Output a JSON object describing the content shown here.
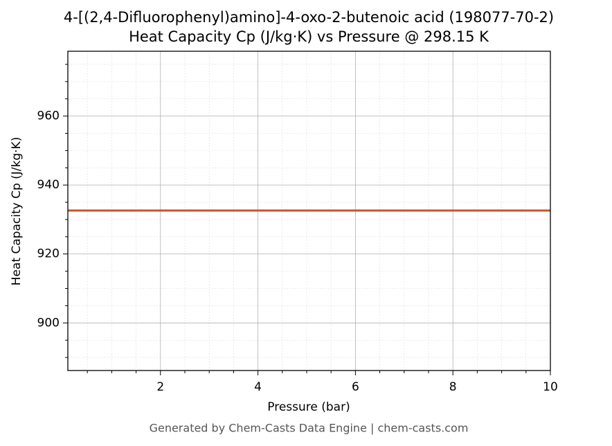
{
  "chart_data": {
    "type": "line",
    "title": "4-[(2,4-Difluorophenyl)amino]-4-oxo-2-butenoic acid (198077-70-2)",
    "subtitle": "Heat Capacity Cp (J/kg·K) vs Pressure @ 298.15 K",
    "x_label": "Pressure (bar)",
    "y_label": "Heat Capacity Cp (J/kg·K)",
    "footer": "Generated by Chem-Casts Data Engine | chem-casts.com",
    "x": [
      0.1,
      10
    ],
    "series": [
      {
        "name": "Cp",
        "color": "#c8522a",
        "values": [
          932.6,
          932.6
        ]
      }
    ],
    "xlim": [
      0.1,
      10
    ],
    "xticks": [
      2,
      4,
      6,
      8,
      10
    ],
    "xminorticks": [
      0.5,
      1,
      1.5,
      2.5,
      3,
      3.5,
      4.5,
      5,
      5.5,
      6.5,
      7,
      7.5,
      8.5,
      9,
      9.5
    ],
    "ylim": [
      886.2,
      978.8
    ],
    "yticks": [
      900,
      920,
      940,
      960
    ],
    "yminorticks": [
      890,
      895,
      905,
      910,
      915,
      925,
      930,
      935,
      945,
      950,
      955,
      965,
      970,
      975
    ],
    "grid": true,
    "minor_grid": true
  }
}
